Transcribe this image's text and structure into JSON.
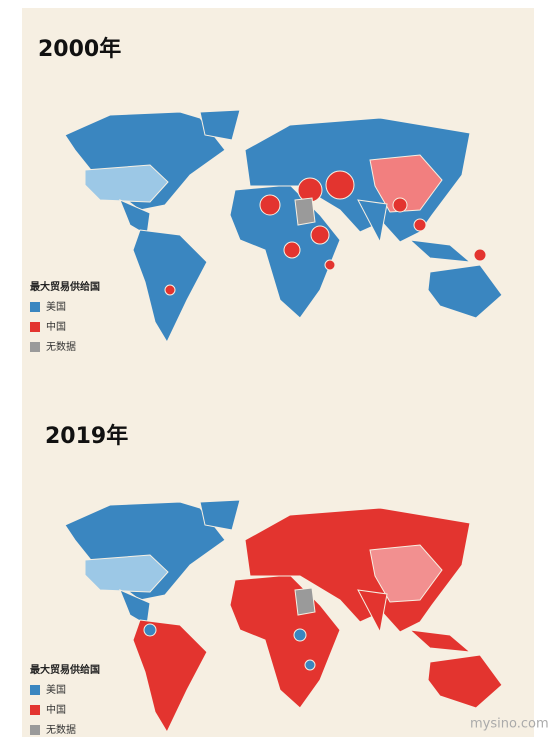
{
  "panels": [
    {
      "title": "2000年",
      "legend": {
        "title": "最大贸易供给国",
        "items": [
          {
            "label": "美国",
            "color": "#3a86c0"
          },
          {
            "label": "中国",
            "color": "#e3342f"
          },
          {
            "label": "无数据",
            "color": "#9a9a9a"
          }
        ]
      }
    },
    {
      "title": "2019年",
      "legend": {
        "title": "最大贸易供给国",
        "items": [
          {
            "label": "美国",
            "color": "#3a86c0"
          },
          {
            "label": "中国",
            "color": "#e3342f"
          },
          {
            "label": "无数据",
            "color": "#9a9a9a"
          }
        ]
      }
    }
  ],
  "watermark": "mysino.com"
}
